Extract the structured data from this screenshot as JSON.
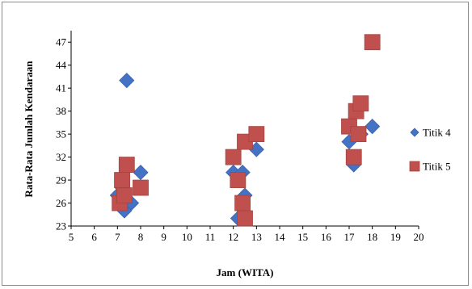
{
  "chart_data": {
    "type": "scatter",
    "title": "",
    "xlabel": "Jam (WITA)",
    "ylabel": "Rata-Rata Jumlah Kendaraan",
    "xlim": [
      5,
      20
    ],
    "ylim": [
      23,
      48.5
    ],
    "xticks": [
      5,
      6,
      7,
      8,
      9,
      10,
      11,
      12,
      13,
      14,
      15,
      16,
      17,
      18,
      19,
      20
    ],
    "yticks": [
      23,
      26,
      29,
      32,
      35,
      38,
      41,
      44,
      47
    ],
    "grid": false,
    "legend_position": "right",
    "series": [
      {
        "name": "Titik 4",
        "marker": "diamond",
        "color": "#4472C4",
        "points": [
          [
            7.4,
            42
          ],
          [
            7.3,
            25
          ],
          [
            7.0,
            27
          ],
          [
            7.2,
            28
          ],
          [
            7.6,
            26
          ],
          [
            8.0,
            30
          ],
          [
            12.0,
            30
          ],
          [
            12.4,
            30
          ],
          [
            12.2,
            24
          ],
          [
            12.5,
            27
          ],
          [
            13.0,
            33
          ],
          [
            17.0,
            34
          ],
          [
            17.2,
            31
          ],
          [
            17.5,
            35
          ],
          [
            18.0,
            36
          ]
        ]
      },
      {
        "name": "Titik 5",
        "marker": "square",
        "color": "#C0504D",
        "points": [
          [
            7.1,
            26
          ],
          [
            7.2,
            29
          ],
          [
            7.3,
            27
          ],
          [
            7.4,
            31
          ],
          [
            8.0,
            28
          ],
          [
            12.0,
            32
          ],
          [
            12.2,
            29
          ],
          [
            12.4,
            26
          ],
          [
            12.5,
            24
          ],
          [
            12.5,
            34
          ],
          [
            13.0,
            35
          ],
          [
            17.0,
            36
          ],
          [
            17.2,
            32
          ],
          [
            17.3,
            38
          ],
          [
            17.4,
            35
          ],
          [
            17.5,
            39
          ],
          [
            18.0,
            47
          ]
        ]
      }
    ]
  }
}
